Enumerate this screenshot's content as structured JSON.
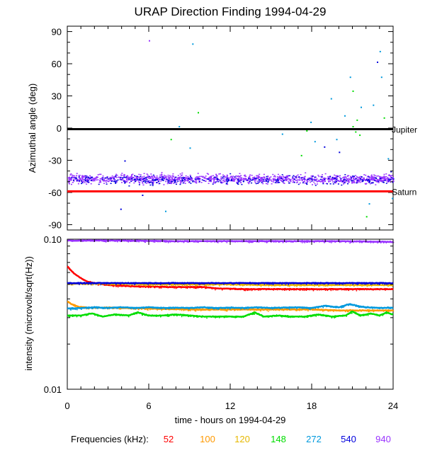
{
  "chart_data": [
    {
      "type": "scatter",
      "title": "URAP Direction Finding  1994-04-29",
      "ylabel": "Azimuthal angle (deg)",
      "xlim": [
        0,
        24
      ],
      "ylim": [
        -95,
        95
      ],
      "y_ticks": [
        90,
        60,
        30,
        0,
        -30,
        -60,
        -90
      ],
      "y_tick_labels": [
        "90",
        "60",
        "30",
        "0",
        "-30",
        "-60",
        "-90"
      ],
      "reference_lines": [
        {
          "name": "Jupiter",
          "label": "Jupiter",
          "y": -1,
          "color": "#000000"
        },
        {
          "name": "Saturn",
          "label": "Saturn",
          "y": -59,
          "color": "#ff0000"
        }
      ],
      "bands": [
        {
          "name": "940 kHz cluster",
          "color": "#9933ff",
          "center": -47,
          "spread": 6,
          "count": 1300
        },
        {
          "name": "540 kHz cluster",
          "color": "#0000dd",
          "center": -48,
          "spread": 6,
          "count": 320
        }
      ],
      "outliers": [
        {
          "x": 6.0,
          "y": 82,
          "color": "#9933ff"
        },
        {
          "x": 9.2,
          "y": 79,
          "color": "#0099dd"
        },
        {
          "x": 9.6,
          "y": 15,
          "color": "#00dd00"
        },
        {
          "x": 7.6,
          "y": -10,
          "color": "#00dd00"
        },
        {
          "x": 8.2,
          "y": 2,
          "color": "#0099dd"
        },
        {
          "x": 7.2,
          "y": -77,
          "color": "#0099dd"
        },
        {
          "x": 3.9,
          "y": -75,
          "color": "#0000dd"
        },
        {
          "x": 4.2,
          "y": -30,
          "color": "#0000dd"
        },
        {
          "x": 5.5,
          "y": -62,
          "color": "#0000dd"
        },
        {
          "x": 9.0,
          "y": -18,
          "color": "#0099dd"
        },
        {
          "x": 15.8,
          "y": -5,
          "color": "#0099dd"
        },
        {
          "x": 17.2,
          "y": -25,
          "color": "#00dd00"
        },
        {
          "x": 17.6,
          "y": -2,
          "color": "#00dd00"
        },
        {
          "x": 17.9,
          "y": 6,
          "color": "#0099dd"
        },
        {
          "x": 18.2,
          "y": -12,
          "color": "#0099dd"
        },
        {
          "x": 18.9,
          "y": -17,
          "color": "#0000dd"
        },
        {
          "x": 19.4,
          "y": 28,
          "color": "#0099dd"
        },
        {
          "x": 19.8,
          "y": -10,
          "color": "#0099dd"
        },
        {
          "x": 20.0,
          "y": -22,
          "color": "#0000dd"
        },
        {
          "x": 20.4,
          "y": 12,
          "color": "#0099dd"
        },
        {
          "x": 20.8,
          "y": 48,
          "color": "#0099dd"
        },
        {
          "x": 21.0,
          "y": 35,
          "color": "#00dd00"
        },
        {
          "x": 21.0,
          "y": 2,
          "color": "#00dd00"
        },
        {
          "x": 21.2,
          "y": -3,
          "color": "#00dd00"
        },
        {
          "x": 21.3,
          "y": 8,
          "color": "#00dd00"
        },
        {
          "x": 21.5,
          "y": -6,
          "color": "#00dd00"
        },
        {
          "x": 21.6,
          "y": 20,
          "color": "#0099dd"
        },
        {
          "x": 22.2,
          "y": -70,
          "color": "#0099dd"
        },
        {
          "x": 22.5,
          "y": 22,
          "color": "#0099dd"
        },
        {
          "x": 22.8,
          "y": 62,
          "color": "#0000dd"
        },
        {
          "x": 23.0,
          "y": 72,
          "color": "#0099dd"
        },
        {
          "x": 23.1,
          "y": 48,
          "color": "#0099dd"
        },
        {
          "x": 23.3,
          "y": 10,
          "color": "#00dd00"
        },
        {
          "x": 23.6,
          "y": -28,
          "color": "#0099dd"
        },
        {
          "x": 23.8,
          "y": -40,
          "color": "#0000dd"
        },
        {
          "x": 23.9,
          "y": -65,
          "color": "#0099dd"
        },
        {
          "x": 22.0,
          "y": -82,
          "color": "#00dd00"
        }
      ]
    },
    {
      "type": "line",
      "ylabel": "intensity (microvolt/sqrt(Hz))",
      "xlabel": "time - hours on 1994-04-29",
      "xlim": [
        0,
        24
      ],
      "ylim": [
        0.01,
        0.1
      ],
      "yscale": "log",
      "x_ticks": [
        0,
        6,
        12,
        18,
        24
      ],
      "x_tick_labels": [
        "0",
        "6",
        "12",
        "18",
        "24"
      ],
      "y_tick_labels": [
        {
          "label": "0.10",
          "value": 0.1
        },
        {
          "label": "0.01",
          "value": 0.01
        }
      ],
      "series": [
        {
          "name": "52",
          "color": "#ff0000",
          "x": [
            0,
            0.2,
            0.5,
            1,
            1.5,
            2,
            3,
            5,
            8,
            10,
            11,
            13,
            16,
            18,
            20,
            22,
            24
          ],
          "y": [
            0.066,
            0.063,
            0.059,
            0.055,
            0.052,
            0.051,
            0.0495,
            0.0485,
            0.048,
            0.048,
            0.047,
            0.0465,
            0.0465,
            0.0465,
            0.0465,
            0.0465,
            0.0465
          ]
        },
        {
          "name": "100",
          "color": "#ff9900",
          "x": [
            0,
            0.3,
            0.8,
            1.5,
            3,
            6,
            9,
            12,
            15,
            18,
            20,
            22,
            24
          ],
          "y": [
            0.0385,
            0.037,
            0.0355,
            0.035,
            0.035,
            0.0345,
            0.034,
            0.034,
            0.034,
            0.034,
            0.0335,
            0.0335,
            0.0335
          ]
        },
        {
          "name": "120",
          "color": "#e6b800",
          "x": [
            0,
            2,
            4,
            6,
            9,
            12,
            15,
            18,
            20,
            22,
            24
          ],
          "y": [
            0.0505,
            0.0505,
            0.0505,
            0.05,
            0.05,
            0.05,
            0.0495,
            0.0495,
            0.0495,
            0.0495,
            0.0495
          ]
        },
        {
          "name": "148",
          "color": "#00dd00",
          "x": [
            0,
            1,
            1.8,
            2.6,
            3.5,
            4.5,
            5.2,
            6,
            7,
            8,
            9,
            10,
            11,
            12,
            13,
            13.8,
            14.5,
            15.5,
            16.5,
            17.5,
            18.5,
            19.5,
            20.5,
            21,
            21.6,
            22.4,
            23,
            23.5,
            24
          ],
          "y": [
            0.031,
            0.031,
            0.032,
            0.0305,
            0.0315,
            0.031,
            0.0325,
            0.031,
            0.031,
            0.0315,
            0.031,
            0.0305,
            0.0305,
            0.0305,
            0.0305,
            0.0325,
            0.0305,
            0.031,
            0.0305,
            0.0305,
            0.0315,
            0.0305,
            0.031,
            0.033,
            0.031,
            0.032,
            0.031,
            0.0325,
            0.0315
          ]
        },
        {
          "name": "272",
          "color": "#0099dd",
          "x": [
            0,
            1,
            2,
            3,
            4,
            5,
            6,
            7,
            8,
            9,
            10,
            11,
            12,
            13,
            14,
            15,
            16,
            17,
            18,
            19,
            20,
            20.8,
            21.4,
            22,
            23,
            24
          ],
          "y": [
            0.0345,
            0.0348,
            0.0352,
            0.0348,
            0.0352,
            0.0348,
            0.0352,
            0.0348,
            0.035,
            0.0348,
            0.0352,
            0.0348,
            0.035,
            0.0348,
            0.0352,
            0.0348,
            0.035,
            0.0352,
            0.0348,
            0.036,
            0.0352,
            0.037,
            0.0358,
            0.0352,
            0.0348,
            0.035
          ]
        },
        {
          "name": "540",
          "color": "#0000dd",
          "x": [
            0,
            4,
            8,
            12,
            16,
            20,
            24
          ],
          "y": [
            0.051,
            0.051,
            0.051,
            0.051,
            0.051,
            0.051,
            0.051
          ]
        },
        {
          "name": "940",
          "color": "#9933ff",
          "x": [
            0,
            4,
            8,
            12,
            16,
            20,
            24
          ],
          "y": [
            0.098,
            0.098,
            0.097,
            0.097,
            0.097,
            0.097,
            0.096
          ]
        }
      ]
    }
  ],
  "legend": {
    "label": "Frequencies (kHz):",
    "entries": [
      {
        "label": "52",
        "color": "#ff0000"
      },
      {
        "label": "100",
        "color": "#ff9900"
      },
      {
        "label": "120",
        "color": "#e6b800"
      },
      {
        "label": "148",
        "color": "#00dd00"
      },
      {
        "label": "272",
        "color": "#0099dd"
      },
      {
        "label": "540",
        "color": "#0000dd"
      },
      {
        "label": "940",
        "color": "#9933ff"
      }
    ]
  }
}
